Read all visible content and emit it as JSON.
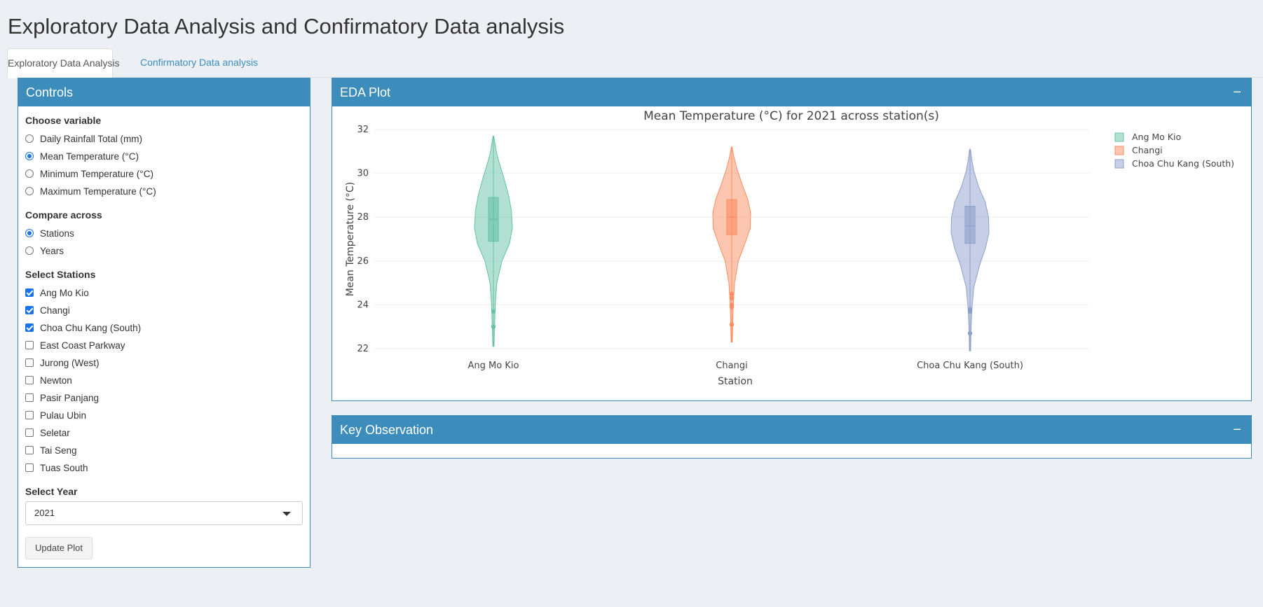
{
  "title": "Exploratory Data Analysis and Confirmatory Data analysis",
  "tabs": [
    {
      "label": "Exploratory Data Analysis",
      "active": true
    },
    {
      "label": "Confirmatory Data analysis",
      "active": false
    }
  ],
  "controls": {
    "title": "Controls",
    "variable": {
      "label": "Choose variable",
      "options": [
        "Daily Rainfall Total (mm)",
        "Mean Temperature (°C)",
        "Minimum Temperature (°C)",
        "Maximum Temperature (°C)"
      ],
      "selected": "Mean Temperature (°C)"
    },
    "compare": {
      "label": "Compare across",
      "options": [
        "Stations",
        "Years"
      ],
      "selected": "Stations"
    },
    "stations": {
      "label": "Select Stations",
      "options": [
        "Ang Mo Kio",
        "Changi",
        "Choa Chu Kang (South)",
        "East Coast Parkway",
        "Jurong (West)",
        "Newton",
        "Pasir Panjang",
        "Pulau Ubin",
        "Seletar",
        "Tai Seng",
        "Tuas South"
      ],
      "checked": [
        "Ang Mo Kio",
        "Changi",
        "Choa Chu Kang (South)"
      ]
    },
    "year": {
      "label": "Select Year",
      "value": "2021"
    },
    "update_button": "Update Plot"
  },
  "eda_box": {
    "title": "EDA Plot",
    "collapse": "−"
  },
  "key_box": {
    "title": "Key Observation",
    "collapse": "−"
  },
  "colors": {
    "primary": "#3c8dbc",
    "background": "#ecf0f5",
    "Ang Mo Kio": "#66c2a5",
    "Changi": "#fc8d62",
    "Choa Chu Kang (South)": "#8da0cb"
  },
  "chart_data": {
    "type": "violin",
    "title": "Mean Temperature (°C) for 2021 across station(s)",
    "xlabel": "Station",
    "ylabel": "Mean Temperature (°C)",
    "ylim": [
      22,
      32
    ],
    "yticks": [
      22,
      24,
      26,
      28,
      30,
      32
    ],
    "grid": true,
    "legend_position": "top-right",
    "categories": [
      "Ang Mo Kio",
      "Changi",
      "Choa Chu Kang (South)"
    ],
    "series": [
      {
        "name": "Ang Mo Kio",
        "color": "#66c2a5",
        "min": 22.1,
        "max": 31.7,
        "q1": 26.9,
        "median": 27.9,
        "q3": 28.9,
        "whisker_low": 23.9,
        "whisker_high": 31.6,
        "outliers": [
          23.7,
          23.0
        ],
        "density": [
          [
            22.1,
            0.03
          ],
          [
            23.0,
            0.06
          ],
          [
            24.0,
            0.1
          ],
          [
            25.0,
            0.18
          ],
          [
            26.0,
            0.45
          ],
          [
            26.8,
            0.85
          ],
          [
            27.5,
            1.0
          ],
          [
            28.3,
            0.95
          ],
          [
            29.0,
            0.8
          ],
          [
            29.8,
            0.55
          ],
          [
            30.5,
            0.3
          ],
          [
            31.0,
            0.15
          ],
          [
            31.7,
            0.02
          ]
        ]
      },
      {
        "name": "Changi",
        "color": "#fc8d62",
        "min": 22.3,
        "max": 31.2,
        "q1": 27.2,
        "median": 28.0,
        "q3": 28.8,
        "whisker_low": 24.8,
        "whisker_high": 31.1,
        "outliers": [
          24.5,
          24.3,
          24.0,
          23.9,
          23.1
        ],
        "density": [
          [
            22.3,
            0.03
          ],
          [
            23.0,
            0.05
          ],
          [
            24.0,
            0.08
          ],
          [
            25.0,
            0.15
          ],
          [
            26.0,
            0.35
          ],
          [
            26.8,
            0.7
          ],
          [
            27.5,
            0.98
          ],
          [
            28.2,
            1.0
          ],
          [
            28.8,
            0.85
          ],
          [
            29.5,
            0.55
          ],
          [
            30.2,
            0.28
          ],
          [
            30.8,
            0.1
          ],
          [
            31.2,
            0.02
          ]
        ]
      },
      {
        "name": "Choa Chu Kang (South)",
        "color": "#8da0cb",
        "min": 21.9,
        "max": 31.1,
        "q1": 26.8,
        "median": 27.6,
        "q3": 28.5,
        "whisker_low": 24.1,
        "whisker_high": 30.8,
        "outliers": [
          23.8,
          23.7,
          22.7
        ],
        "density": [
          [
            21.9,
            0.03
          ],
          [
            22.8,
            0.05
          ],
          [
            23.8,
            0.1
          ],
          [
            24.8,
            0.2
          ],
          [
            25.8,
            0.5
          ],
          [
            26.6,
            0.82
          ],
          [
            27.3,
            1.0
          ],
          [
            28.0,
            0.98
          ],
          [
            28.7,
            0.8
          ],
          [
            29.4,
            0.45
          ],
          [
            30.1,
            0.2
          ],
          [
            30.6,
            0.1
          ],
          [
            31.1,
            0.02
          ]
        ]
      }
    ]
  }
}
